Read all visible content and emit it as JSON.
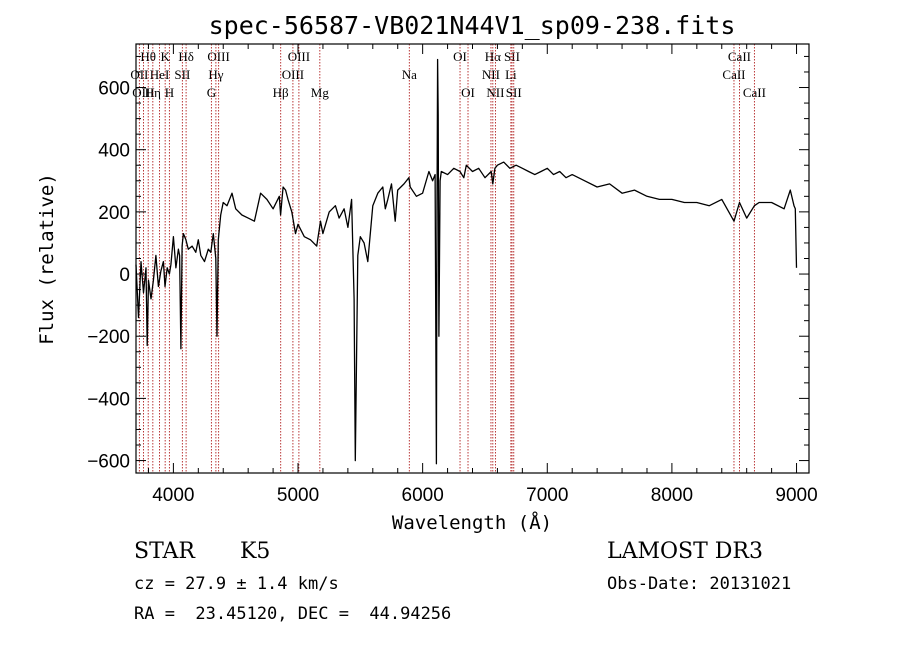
{
  "chart_data": {
    "type": "line",
    "title": "spec-56587-VB021N44V1_sp09-238.fits",
    "xlabel": "Wavelength (Å)",
    "ylabel": "Flux (relative)",
    "xlim": [
      3700,
      9100
    ],
    "ylim": [
      -640,
      740
    ],
    "x_ticks": [
      4000,
      5000,
      6000,
      7000,
      8000,
      9000
    ],
    "y_ticks": [
      -600,
      -400,
      -200,
      0,
      200,
      400,
      600
    ],
    "grid": false,
    "series": [
      {
        "x": [
          3700,
          3720,
          3740,
          3760,
          3780,
          3790,
          3800,
          3820,
          3840,
          3860,
          3880,
          3900,
          3920,
          3933,
          3950,
          3968,
          3980,
          4000,
          4020,
          4040,
          4050,
          4060,
          4070,
          4080,
          4100,
          4120,
          4150,
          4180,
          4200,
          4220,
          4250,
          4280,
          4300,
          4320,
          4340,
          4350,
          4360,
          4380,
          4400,
          4430,
          4470,
          4500,
          4550,
          4600,
          4650,
          4700,
          4750,
          4800,
          4850,
          4860,
          4880,
          4900,
          4920,
          4950,
          4980,
          5000,
          5050,
          5100,
          5150,
          5180,
          5200,
          5250,
          5300,
          5330,
          5370,
          5400,
          5430,
          5450,
          5460,
          5480,
          5500,
          5530,
          5560,
          5600,
          5640,
          5680,
          5700,
          5720,
          5750,
          5780,
          5800,
          5850,
          5890,
          5900,
          5950,
          6000,
          6050,
          6080,
          6100,
          6110,
          6115,
          6120,
          6125,
          6130,
          6140,
          6150,
          6200,
          6250,
          6300,
          6330,
          6350,
          6400,
          6450,
          6500,
          6550,
          6563,
          6580,
          6600,
          6650,
          6700,
          6750,
          6800,
          6850,
          6900,
          6950,
          7000,
          7050,
          7100,
          7150,
          7200,
          7300,
          7400,
          7500,
          7600,
          7700,
          7800,
          7900,
          8000,
          8100,
          8200,
          8300,
          8400,
          8498,
          8542,
          8600,
          8662,
          8700,
          8800,
          8900,
          8950,
          8980,
          8990,
          9000
        ],
        "values": [
          30,
          -140,
          40,
          -60,
          20,
          -230,
          -20,
          -80,
          -20,
          60,
          -40,
          10,
          40,
          -40,
          20,
          0,
          30,
          120,
          20,
          80,
          60,
          -240,
          90,
          130,
          110,
          80,
          90,
          70,
          110,
          60,
          40,
          80,
          70,
          130,
          50,
          -200,
          110,
          190,
          230,
          220,
          260,
          210,
          190,
          180,
          170,
          260,
          240,
          210,
          250,
          190,
          280,
          270,
          240,
          200,
          130,
          160,
          120,
          110,
          90,
          170,
          130,
          200,
          220,
          180,
          210,
          150,
          240,
          -80,
          -600,
          60,
          120,
          100,
          40,
          220,
          260,
          280,
          210,
          240,
          290,
          170,
          270,
          290,
          310,
          280,
          250,
          260,
          330,
          300,
          320,
          -610,
          200,
          690,
          510,
          -200,
          300,
          330,
          320,
          340,
          330,
          310,
          350,
          330,
          340,
          310,
          330,
          290,
          340,
          350,
          360,
          340,
          350,
          340,
          330,
          320,
          330,
          340,
          320,
          330,
          310,
          320,
          300,
          280,
          290,
          260,
          270,
          250,
          240,
          240,
          230,
          230,
          220,
          240,
          170,
          230,
          180,
          220,
          230,
          230,
          210,
          270,
          220,
          210,
          20
        ]
      }
    ],
    "lines": [
      {
        "label": "Hθ",
        "x": 3798,
        "row": 1
      },
      {
        "label": "K",
        "x": 3934,
        "row": 1
      },
      {
        "label": "Hδ",
        "x": 4102,
        "row": 1
      },
      {
        "label": "OIII",
        "x": 4363,
        "row": 1
      },
      {
        "label": "OIII",
        "x": 5007,
        "row": 1
      },
      {
        "label": "OI",
        "x": 6300,
        "row": 1
      },
      {
        "label": "Hα",
        "x": 6563,
        "row": 1
      },
      {
        "label": "SII",
        "x": 6717,
        "row": 1
      },
      {
        "label": "CaII",
        "x": 8542,
        "row": 1
      },
      {
        "label": "OII",
        "x": 3727,
        "row": 2
      },
      {
        "label": "HeI",
        "x": 3889,
        "row": 2
      },
      {
        "label": "SII",
        "x": 4072,
        "row": 2
      },
      {
        "label": "Hγ",
        "x": 4341,
        "row": 2
      },
      {
        "label": "OIII",
        "x": 4959,
        "row": 2
      },
      {
        "label": "Na",
        "x": 5893,
        "row": 2
      },
      {
        "label": "NII",
        "x": 6548,
        "row": 2
      },
      {
        "label": "Li",
        "x": 6708,
        "row": 2
      },
      {
        "label": "CaII",
        "x": 8498,
        "row": 2
      },
      {
        "label": "OIII",
        "x": 3760,
        "row": 3
      },
      {
        "label": "Hη",
        "x": 3835,
        "row": 3
      },
      {
        "label": "H",
        "x": 3968,
        "row": 3
      },
      {
        "label": "G",
        "x": 4305,
        "row": 3
      },
      {
        "label": "Hβ",
        "x": 4861,
        "row": 3
      },
      {
        "label": "Mg",
        "x": 5175,
        "row": 3
      },
      {
        "label": "OI",
        "x": 6364,
        "row": 3
      },
      {
        "label": "NII",
        "x": 6584,
        "row": 3
      },
      {
        "label": "SII",
        "x": 6731,
        "row": 3
      },
      {
        "label": "CaII",
        "x": 8662,
        "row": 3
      }
    ]
  },
  "info": {
    "class": "STAR",
    "subclass": "K5",
    "survey": "LAMOST DR3",
    "cz": "cz = 27.9 ± 1.4 km/s",
    "obs_date": "Obs-Date: 20131021",
    "radec": "RA =  23.45120, DEC =  44.94256"
  }
}
